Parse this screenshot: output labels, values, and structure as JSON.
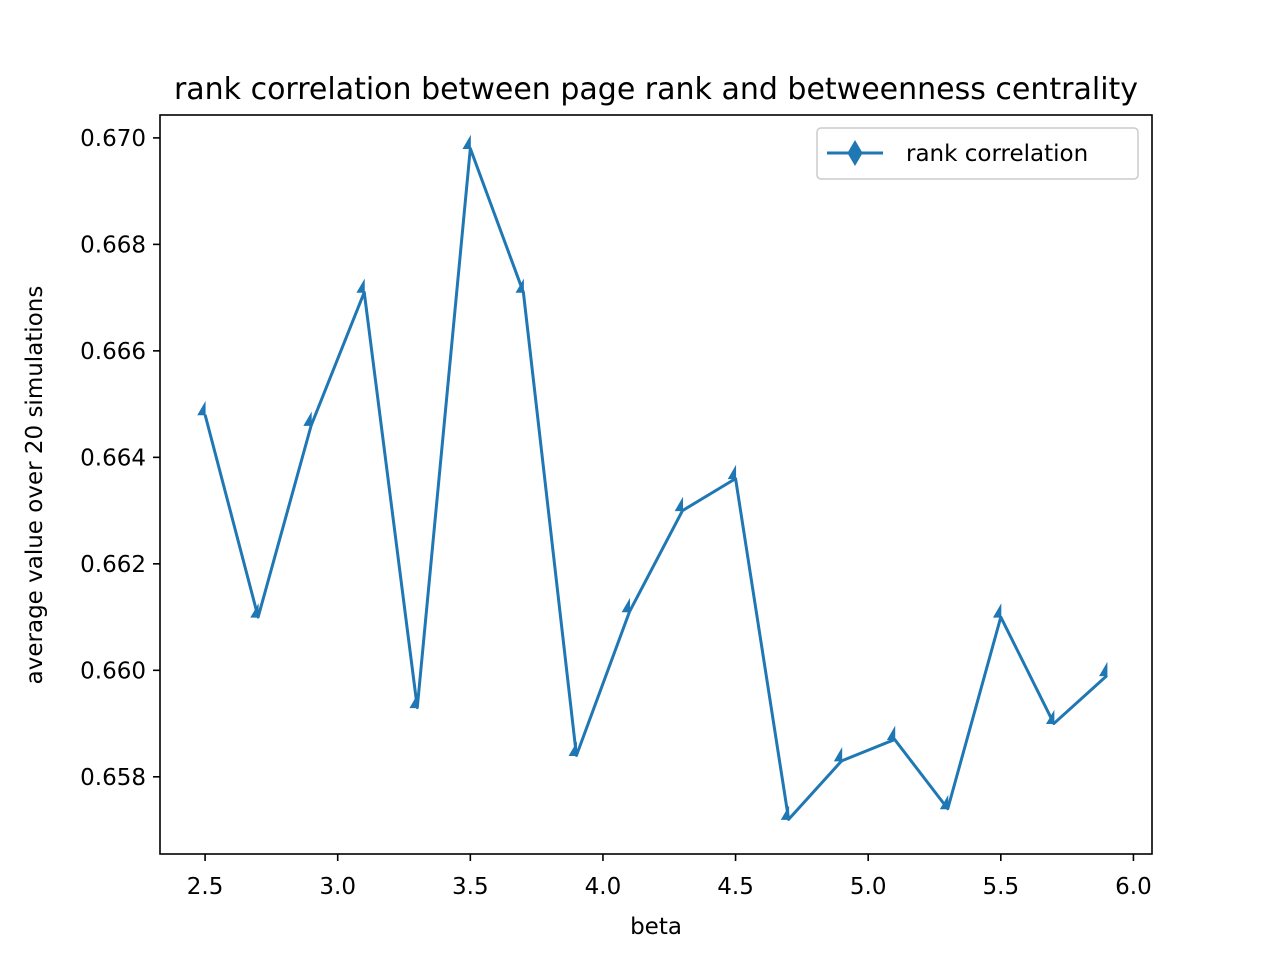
{
  "chart_data": {
    "type": "line",
    "title": "rank correlation between page rank and betweenness centrality",
    "xlabel": "beta",
    "ylabel": "average value over 20 simulations",
    "xlim": [
      2.33,
      6.07
    ],
    "ylim": [
      0.65655,
      0.67043
    ],
    "x_ticks": [
      2.5,
      3.0,
      3.5,
      4.0,
      4.5,
      5.0,
      5.5,
      6.0
    ],
    "x_tick_labels": [
      "2.5",
      "3.0",
      "3.5",
      "4.0",
      "4.5",
      "5.0",
      "5.5",
      "6.0"
    ],
    "y_ticks": [
      0.658,
      0.66,
      0.662,
      0.664,
      0.666,
      0.668,
      0.67
    ],
    "y_tick_labels": [
      "0.658",
      "0.660",
      "0.662",
      "0.664",
      "0.666",
      "0.668",
      "0.670"
    ],
    "grid": false,
    "legend_position": "upper right",
    "series": [
      {
        "name": "rank correlation",
        "color": "#1f77b4",
        "marker": "thin-diamond",
        "x": [
          2.5,
          2.7,
          2.9,
          3.1,
          3.3,
          3.5,
          3.7,
          3.9,
          4.1,
          4.3,
          4.5,
          4.7,
          4.9,
          5.1,
          5.3,
          5.5,
          5.7,
          5.9
        ],
        "y": [
          0.6648,
          0.661,
          0.6646,
          0.6671,
          0.6593,
          0.6698,
          0.6671,
          0.6584,
          0.6611,
          0.663,
          0.6636,
          0.6572,
          0.6583,
          0.6587,
          0.6574,
          0.661,
          0.659,
          0.6599
        ]
      }
    ]
  }
}
